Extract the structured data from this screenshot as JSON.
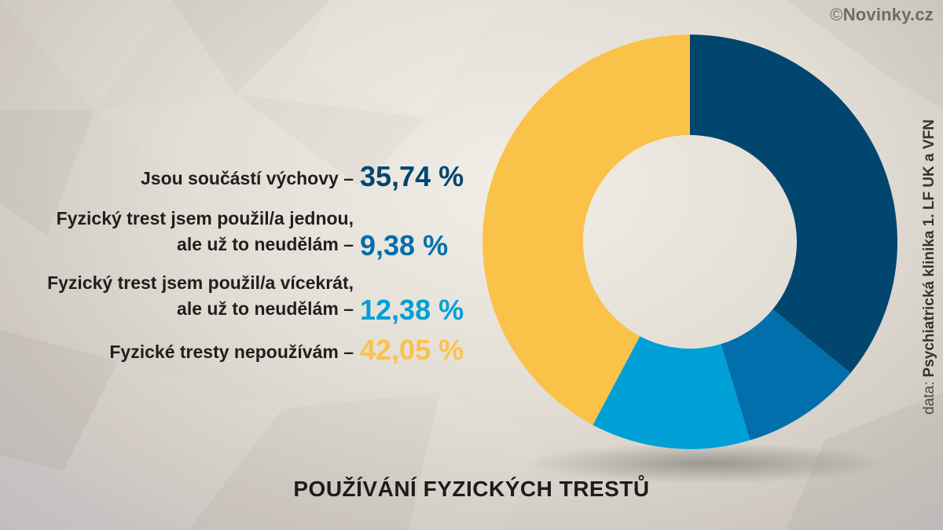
{
  "copyright": {
    "symbol": "©",
    "text": "Novinky.cz"
  },
  "title": "POUŽÍVÁNÍ FYZICKÝCH TRESTŮ",
  "source": {
    "prefix": "data:",
    "name": "Psychiatrická klinika 1. LF UK a VFN"
  },
  "legend": [
    {
      "line1": "",
      "line2": "Jsou součástí výchovy –",
      "value": "35,74 %"
    },
    {
      "line1": "Fyzický trest jsem použil/a jednou,",
      "line2": "ale už to neudělám –",
      "value": "9,38 %"
    },
    {
      "line1": "Fyzický trest jsem použil/a vícekrát,",
      "line2": "ale už to neudělám –",
      "value": "12,38 %"
    },
    {
      "line1": "",
      "line2": "Fyzické tresty nepoužívám –",
      "value": "42,05 %"
    }
  ],
  "colors": [
    "#00466f",
    "#006fab",
    "#00a0d6",
    "#fbc24a"
  ],
  "chart_data": {
    "type": "pie",
    "donut": true,
    "title": "POUŽÍVÁNÍ FYZICKÝCH TRESTŮ",
    "categories": [
      "Jsou součástí výchovy",
      "Fyzický trest jsem použil/a jednou, ale už to neudělám",
      "Fyzický trest jsem použil/a vícekrát, ale už to neudělám",
      "Fyzické tresty nepoužívám"
    ],
    "values": [
      35.74,
      9.38,
      12.38,
      42.05
    ],
    "unit": "%",
    "colors": [
      "#00466f",
      "#006fab",
      "#00a0d6",
      "#fbc24a"
    ],
    "start": "top",
    "direction": "clockwise"
  }
}
